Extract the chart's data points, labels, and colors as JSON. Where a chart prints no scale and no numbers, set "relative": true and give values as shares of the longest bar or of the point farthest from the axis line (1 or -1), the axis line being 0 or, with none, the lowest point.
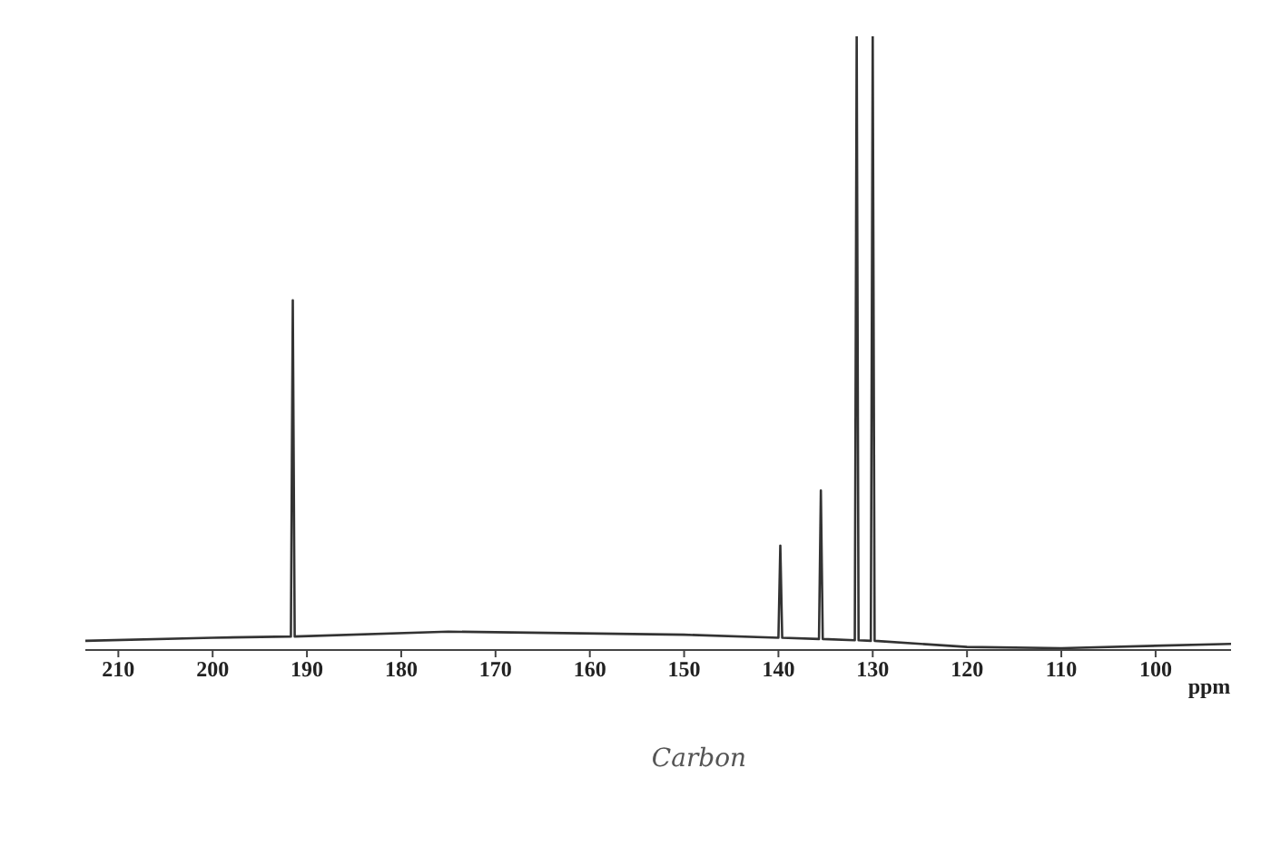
{
  "chart_data": {
    "type": "line",
    "relative": true,
    "xlabel": "ppm",
    "annotations": [
      "Carbon"
    ],
    "xlim": [
      213.5,
      92
    ],
    "xticks": [
      210,
      200,
      190,
      180,
      170,
      160,
      150,
      140,
      130,
      120,
      110,
      100
    ],
    "tick_labels": "x",
    "grid": false,
    "legend": false,
    "marker": "none",
    "line_style": "solid",
    "series": [
      {
        "color": "#333333",
        "x": [
          213.5,
          200,
          191.7,
          191.5,
          191.3,
          175,
          150,
          140.0,
          139.8,
          139.6,
          135.7,
          135.5,
          135.3,
          131.9,
          131.7,
          131.5,
          130.2,
          130.0,
          129.8,
          120,
          110,
          92
        ],
        "values": [
          0.015,
          0.02,
          0.022,
          0.57,
          0.022,
          0.03,
          0.025,
          0.02,
          0.17,
          0.02,
          0.018,
          0.26,
          0.018,
          0.016,
          1,
          0.016,
          0.015,
          1,
          0.015,
          0.005,
          0.003,
          0.01
        ]
      }
    ]
  }
}
